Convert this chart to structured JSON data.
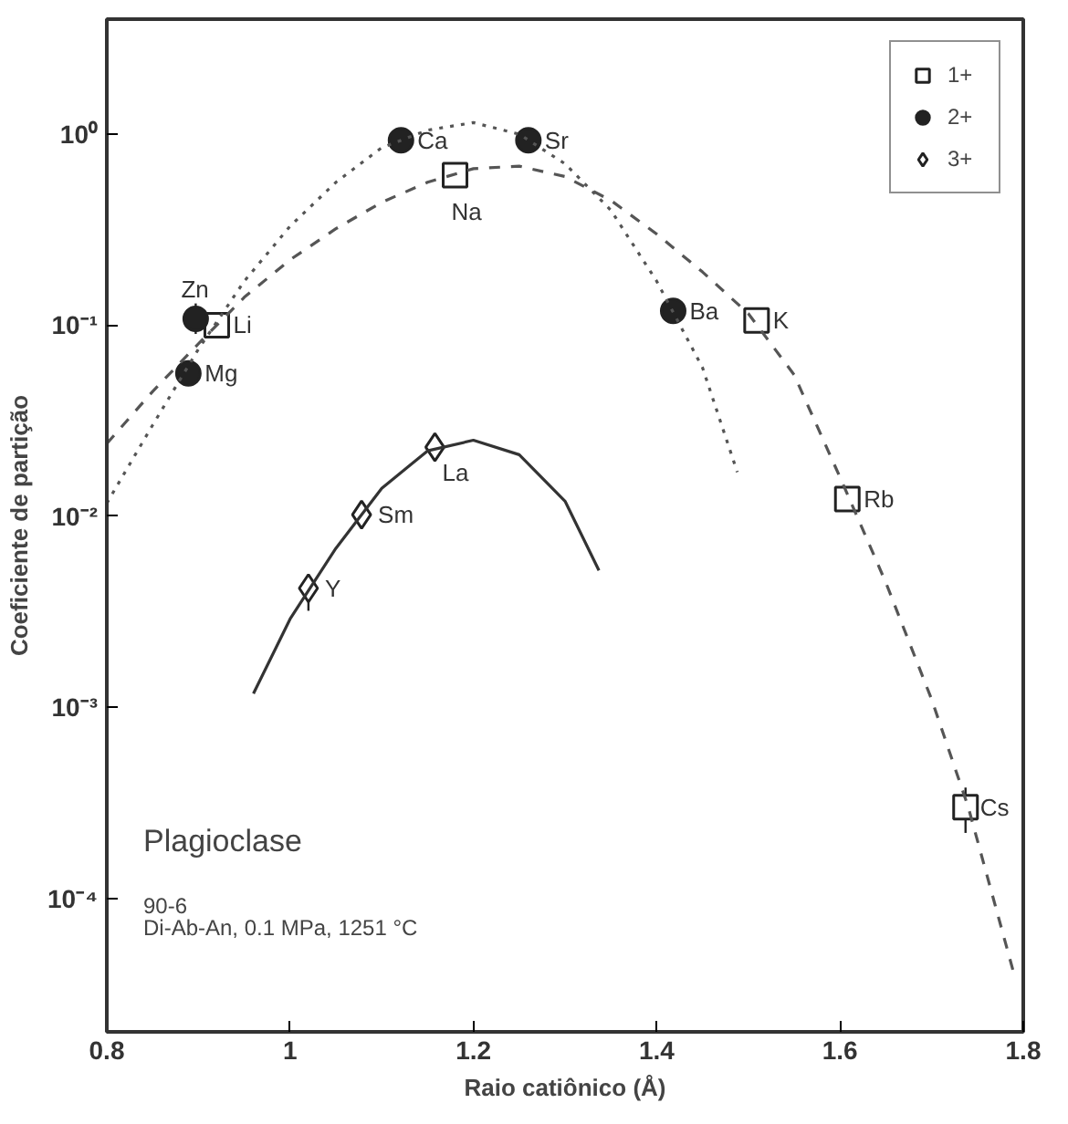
{
  "chart_data": {
    "type": "scatter",
    "xlabel": "Raio catiônico (Å)",
    "ylabel": "Coeficiente de partição",
    "log": "y",
    "xlim": [
      0.8,
      1.8
    ],
    "ylim": [
      2e-05,
      4
    ],
    "xticks": [
      0.8,
      {
        "value": 1.0,
        "label": "1"
      },
      1.2,
      1.4,
      1.6,
      1.8
    ],
    "yticks": [
      {
        "value": 0.0001,
        "label": "10⁻⁴"
      },
      {
        "value": 0.001,
        "label": "10⁻³"
      },
      {
        "value": 0.01,
        "label": "10⁻²"
      },
      {
        "value": 0.1,
        "label": "10⁻¹"
      },
      {
        "value": 1,
        "label": "10⁰"
      }
    ],
    "grid": false,
    "legend": "top right",
    "series": [
      {
        "name": "1+",
        "marker": "square",
        "color": "#222222",
        "x": [
          0.92,
          1.18,
          1.509,
          1.608,
          1.737
        ],
        "values": [
          0.1,
          0.61,
          0.106,
          0.0123,
          0.0003
        ],
        "errors": [
          null,
          null,
          null,
          null,
          [
            0.00022,
            0.00038
          ]
        ]
      },
      {
        "name": "2+",
        "marker": "circle",
        "color": "#222222",
        "x": [
          0.889,
          0.897,
          1.121,
          1.26,
          1.418
        ],
        "values": [
          0.056,
          0.108,
          0.93,
          0.93,
          0.119
        ],
        "errors": [
          null,
          [
            0.09,
            0.13
          ],
          null,
          null,
          null
        ]
      },
      {
        "name": "3+",
        "marker": "diamond",
        "color": "#222222",
        "x": [
          1.02,
          1.078,
          1.158
        ],
        "values": [
          0.0042,
          0.0102,
          0.023
        ],
        "errors": [
          [
            0.0032,
            0.0042
          ],
          null,
          null
        ]
      },
      {
        "type": "line",
        "line_style": "dashed",
        "color": "#555555",
        "x": [
          0.8,
          0.85,
          0.9,
          0.95,
          1.0,
          1.05,
          1.1,
          1.15,
          1.2,
          1.25,
          1.3,
          1.35,
          1.4,
          1.45,
          1.5,
          1.55,
          1.6,
          1.65,
          1.7,
          1.74,
          1.79
        ],
        "values": [
          0.024,
          0.045,
          0.08,
          0.14,
          0.22,
          0.32,
          0.44,
          0.56,
          0.66,
          0.68,
          0.6,
          0.45,
          0.3,
          0.19,
          0.115,
          0.055,
          0.016,
          0.0045,
          0.0011,
          0.0003,
          4e-05
        ]
      },
      {
        "type": "line",
        "line_style": "dotted",
        "color": "#555555",
        "x": [
          0.8,
          0.85,
          0.9,
          0.95,
          1.0,
          1.05,
          1.1,
          1.15,
          1.2,
          1.25,
          1.3,
          1.35,
          1.4,
          1.45,
          1.488
        ],
        "values": [
          0.0117,
          0.03,
          0.075,
          0.17,
          0.33,
          0.56,
          0.85,
          1.05,
          1.15,
          1.0,
          0.7,
          0.4,
          0.17,
          0.06,
          0.017
        ]
      },
      {
        "type": "line",
        "line_style": "solid",
        "color": "#333333",
        "x": [
          0.96,
          1.0,
          1.05,
          1.1,
          1.15,
          1.2,
          1.25,
          1.3,
          1.337
        ],
        "values": [
          0.00118,
          0.0029,
          0.0068,
          0.014,
          0.022,
          0.025,
          0.021,
          0.012,
          0.0052
        ]
      }
    ],
    "annotations": [
      {
        "text": "Li",
        "x": 0.92,
        "y": 0.1
      },
      {
        "text": "Na",
        "x": 1.18,
        "y": 0.61
      },
      {
        "text": "K",
        "x": 1.509,
        "y": 0.106
      },
      {
        "text": "Rb",
        "x": 1.608,
        "y": 0.0123
      },
      {
        "text": "Cs",
        "x": 1.737,
        "y": 0.0003
      },
      {
        "text": "Mg",
        "x": 0.889,
        "y": 0.056
      },
      {
        "text": "Zn",
        "x": 0.897,
        "y": 0.108
      },
      {
        "text": "Ca",
        "x": 1.121,
        "y": 0.93
      },
      {
        "text": "Sr",
        "x": 1.26,
        "y": 0.93
      },
      {
        "text": "Ba",
        "x": 1.418,
        "y": 0.119
      },
      {
        "text": "Y",
        "x": 1.02,
        "y": 0.0042
      },
      {
        "text": "Sm",
        "x": 1.078,
        "y": 0.0102
      },
      {
        "text": "La",
        "x": 1.158,
        "y": 0.023
      },
      "Plagioclase",
      "90-6",
      "Di-Ab-An, 0.1 MPa, 1251 °C"
    ]
  }
}
